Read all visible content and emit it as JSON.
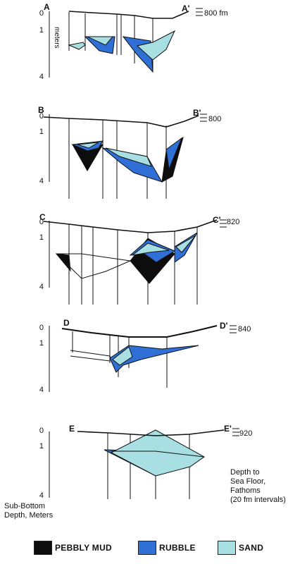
{
  "colors": {
    "pebbly_mud": "#0d0d0d",
    "rubble": "#2f6fd6",
    "sand": "#a8dfe2",
    "line": "#1a1a1a"
  },
  "axis_label": "meters",
  "depth_ticks": [
    "0",
    "1",
    "4"
  ],
  "profiles": [
    {
      "id": "a",
      "start": "A",
      "end": "A'",
      "depth": "800 fm"
    },
    {
      "id": "b",
      "start": "B",
      "end": "B'",
      "depth": "800"
    },
    {
      "id": "c",
      "start": "C",
      "end": "C'",
      "depth": "820"
    },
    {
      "id": "d",
      "start": "D",
      "end": "D'",
      "depth": "840"
    },
    {
      "id": "e",
      "start": "E",
      "end": "E'",
      "depth": "920"
    }
  ],
  "notes": {
    "sea_floor": [
      "Depth to",
      "Sea Floor,",
      "Fathoms",
      "(20 fm intervals)"
    ],
    "sub_bottom": [
      "Sub-Bottom",
      "Depth, Meters"
    ]
  },
  "legend": [
    {
      "label": "PEBBLY MUD",
      "icon": "pebbly-mud-swatch"
    },
    {
      "label": "RUBBLE",
      "icon": "rubble-swatch"
    },
    {
      "label": "SAND",
      "icon": "sand-swatch"
    }
  ]
}
